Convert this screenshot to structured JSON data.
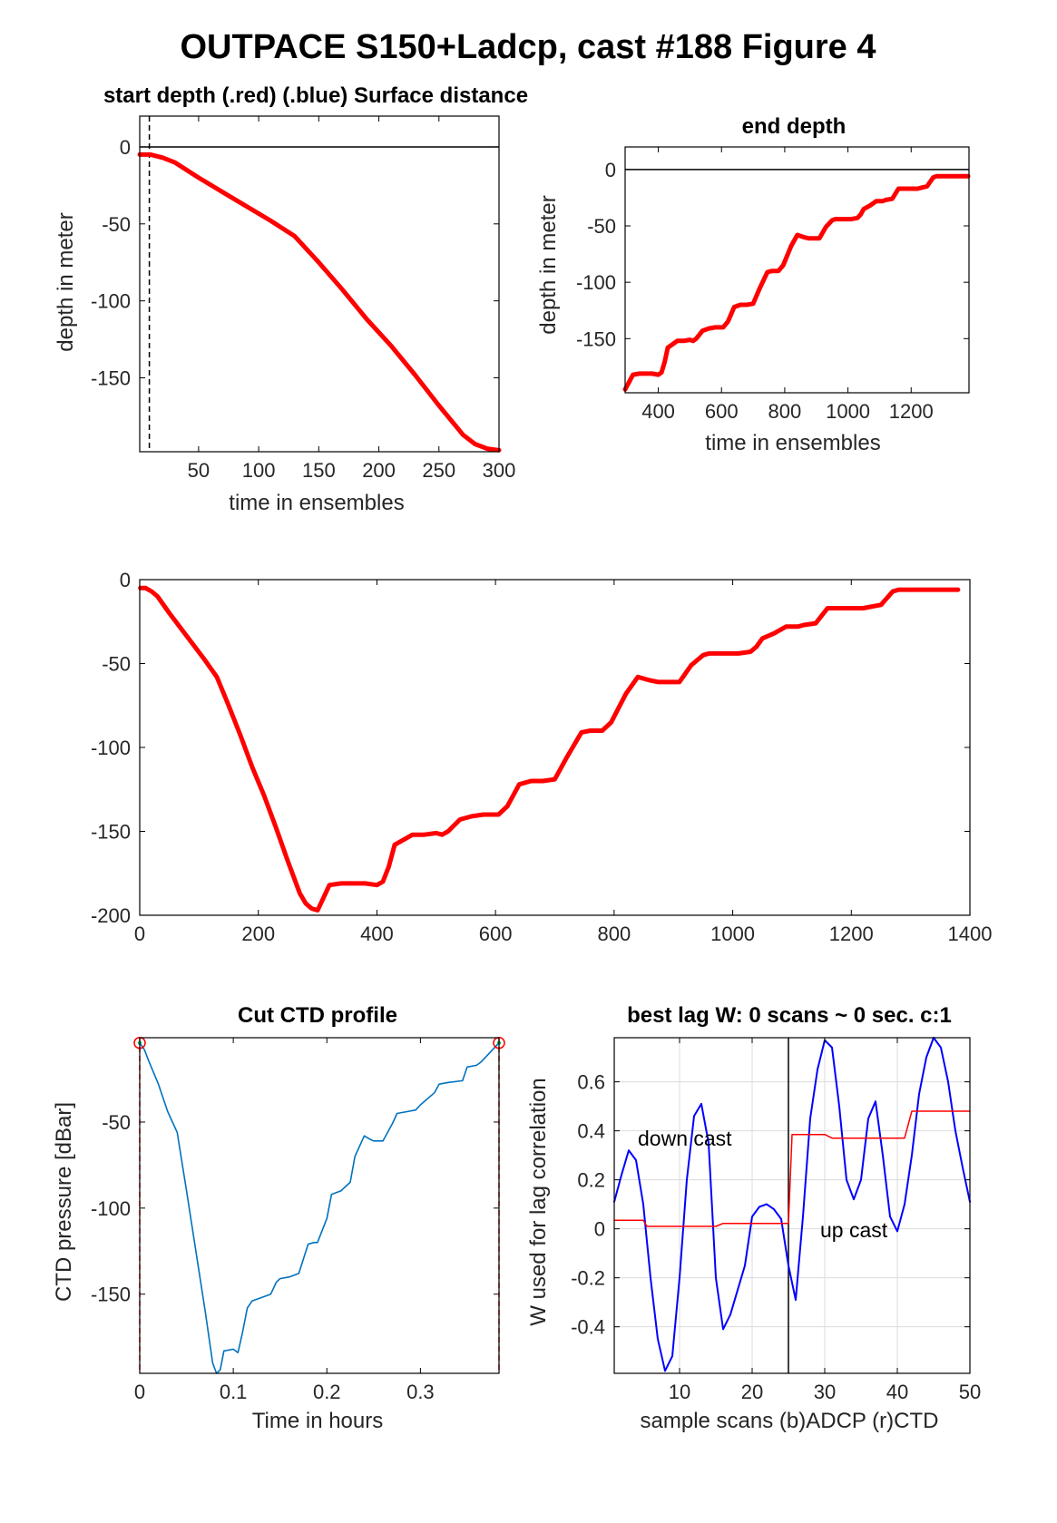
{
  "figure_title": "OUTPACE S150+Ladcp, cast #188   Figure 4",
  "colors": {
    "red": "#ff0000",
    "blue": "#0000ff",
    "ctd_blue": "#0072bd",
    "black": "#000000",
    "grid": "#dcdcdc"
  },
  "chart_data": [
    {
      "id": "start",
      "type": "line",
      "title": "start depth (.red) (.blue) Surface distance",
      "xlabel": "time in ensembles",
      "ylabel": "depth in meter",
      "xlim": [
        1,
        300
      ],
      "ylim": [
        -198,
        20
      ],
      "xticks": [
        50,
        100,
        150,
        200,
        250,
        300
      ],
      "yticks": [
        0,
        -50,
        -100,
        -150
      ],
      "grid": false,
      "hlines": [
        0
      ],
      "vlines_dashed": [
        9
      ],
      "series": [
        {
          "color": "red",
          "x": [
            1,
            10,
            20,
            30,
            50,
            80,
            110,
            130,
            150,
            170,
            190,
            210,
            230,
            250,
            270,
            280,
            290,
            300
          ],
          "y": [
            -5,
            -5,
            -7,
            -10,
            -20,
            -34,
            -48,
            -58,
            -75,
            -93,
            -112,
            -129,
            -148,
            -168,
            -187,
            -193,
            -196,
            -197
          ]
        }
      ]
    },
    {
      "id": "end",
      "type": "line",
      "title": "end depth",
      "xlabel": "time in ensembles",
      "ylabel": "depth in meter",
      "xlim": [
        295,
        1383
      ],
      "ylim": [
        -198,
        20
      ],
      "xticks": [
        400,
        600,
        800,
        1000,
        1200
      ],
      "yticks": [
        0,
        -50,
        -100,
        -150
      ],
      "grid": false,
      "hlines": [
        0
      ],
      "series": [
        {
          "color": "red",
          "x": [
            295,
            320,
            340,
            360,
            380,
            400,
            410,
            420,
            430,
            450,
            460,
            480,
            500,
            510,
            520,
            540,
            560,
            580,
            595,
            605,
            620,
            640,
            660,
            680,
            700,
            720,
            745,
            760,
            780,
            795,
            820,
            840,
            860,
            875,
            890,
            910,
            930,
            950,
            960,
            975,
            990,
            1010,
            1030,
            1040,
            1050,
            1070,
            1090,
            1110,
            1120,
            1140,
            1160,
            1190,
            1200,
            1220,
            1250,
            1270,
            1280,
            1300,
            1320,
            1340,
            1360,
            1380
          ],
          "y": [
            -195,
            -182,
            -181,
            -181,
            -181,
            -182,
            -180,
            -171,
            -158,
            -154,
            -152,
            -152,
            -151,
            -152,
            -150,
            -143,
            -141,
            -140,
            -140,
            -140,
            -135,
            -122,
            -120,
            -120,
            -119,
            -106,
            -91,
            -90,
            -90,
            -85,
            -68,
            -58,
            -60,
            -61,
            -61,
            -61,
            -51,
            -45,
            -44,
            -44,
            -44,
            -44,
            -43,
            -40,
            -35,
            -32,
            -28,
            -28,
            -27,
            -26,
            -17,
            -17,
            -17,
            -17,
            -15,
            -7,
            -6,
            -6,
            -6,
            -6,
            -6,
            -6
          ]
        }
      ]
    },
    {
      "id": "full",
      "type": "line",
      "title": "",
      "xlabel": "",
      "ylabel": "",
      "xlim": [
        0,
        1400
      ],
      "ylim": [
        -200,
        0
      ],
      "xticks": [
        0,
        200,
        400,
        600,
        800,
        1000,
        1200,
        1400
      ],
      "yticks": [
        0,
        -50,
        -100,
        -150,
        -200
      ],
      "grid": false,
      "series": [
        {
          "color": "red",
          "x": [
            1,
            10,
            20,
            30,
            50,
            80,
            110,
            130,
            150,
            170,
            190,
            210,
            230,
            250,
            270,
            280,
            290,
            300,
            320,
            340,
            360,
            380,
            400,
            410,
            420,
            430,
            450,
            460,
            480,
            500,
            510,
            520,
            540,
            560,
            580,
            595,
            605,
            620,
            640,
            660,
            680,
            700,
            720,
            745,
            760,
            780,
            795,
            820,
            840,
            860,
            875,
            890,
            910,
            930,
            950,
            960,
            975,
            990,
            1010,
            1030,
            1040,
            1050,
            1070,
            1090,
            1110,
            1120,
            1140,
            1160,
            1190,
            1200,
            1220,
            1250,
            1270,
            1280,
            1300,
            1320,
            1340,
            1360,
            1380
          ],
          "y": [
            -5,
            -5,
            -7,
            -10,
            -20,
            -34,
            -48,
            -58,
            -75,
            -93,
            -112,
            -129,
            -148,
            -168,
            -187,
            -193,
            -196,
            -197,
            -182,
            -181,
            -181,
            -181,
            -182,
            -180,
            -171,
            -158,
            -154,
            -152,
            -152,
            -151,
            -152,
            -150,
            -143,
            -141,
            -140,
            -140,
            -140,
            -135,
            -122,
            -120,
            -120,
            -119,
            -106,
            -91,
            -90,
            -90,
            -85,
            -68,
            -58,
            -60,
            -61,
            -61,
            -61,
            -51,
            -45,
            -44,
            -44,
            -44,
            -44,
            -43,
            -40,
            -35,
            -32,
            -28,
            -28,
            -27,
            -26,
            -17,
            -17,
            -17,
            -17,
            -15,
            -7,
            -6,
            -6,
            -6,
            -6,
            -6,
            -6
          ]
        }
      ]
    },
    {
      "id": "ctd",
      "type": "line",
      "title": "Cut CTD profile",
      "xlabel": "Time in hours",
      "ylabel": "CTD pressure [dBar]",
      "xlim": [
        0,
        0.384
      ],
      "ylim": [
        -196,
        -1
      ],
      "xticks": [
        0,
        0.1,
        0.2,
        0.3
      ],
      "xticklabels": [
        "0",
        "0.1",
        "0.2",
        "0.3"
      ],
      "yticks": [
        -50,
        -100,
        -150
      ],
      "grid": false,
      "vlines_dashed": [
        0,
        0.384
      ],
      "endpoints": [
        [
          0,
          -4
        ],
        [
          0.384,
          -4
        ]
      ],
      "series": [
        {
          "color": "ctd_blue",
          "x": [
            0,
            0.005,
            0.01,
            0.02,
            0.03,
            0.035,
            0.04,
            0.05,
            0.06,
            0.07,
            0.078,
            0.082,
            0.086,
            0.09,
            0.1,
            0.105,
            0.11,
            0.115,
            0.12,
            0.13,
            0.14,
            0.146,
            0.15,
            0.16,
            0.17,
            0.18,
            0.186,
            0.19,
            0.2,
            0.205,
            0.21,
            0.215,
            0.225,
            0.23,
            0.24,
            0.246,
            0.25,
            0.26,
            0.27,
            0.275,
            0.285,
            0.295,
            0.3,
            0.315,
            0.32,
            0.33,
            0.345,
            0.35,
            0.36,
            0.365,
            0.384
          ],
          "y": [
            -4,
            -8,
            -15,
            -28,
            -44,
            -50,
            -56,
            -90,
            -125,
            -160,
            -190,
            -196,
            -194,
            -183,
            -182,
            -184,
            -172,
            -158,
            -154,
            -152,
            -150,
            -143,
            -141,
            -140,
            -138,
            -121,
            -120,
            -120,
            -106,
            -92,
            -91,
            -90,
            -85,
            -70,
            -58,
            -60,
            -61,
            -61,
            -51,
            -45,
            -44,
            -43,
            -40,
            -33,
            -28,
            -27,
            -26,
            -18,
            -17,
            -15,
            -4
          ]
        }
      ]
    },
    {
      "id": "lag",
      "type": "line",
      "title": "best lag W: 0 scans ~ 0 sec.  c:1",
      "xlabel": "sample scans (b)ADCP (r)CTD",
      "ylabel": "W used for lag correlation",
      "xlim": [
        1,
        50
      ],
      "ylim": [
        -0.59,
        0.78
      ],
      "xticks": [
        10,
        20,
        30,
        40,
        50
      ],
      "yticks": [
        0.6,
        0.4,
        0.2,
        0,
        -0.2,
        -0.4
      ],
      "yticklabels": [
        "0.6",
        "0.4",
        "0.2",
        "0",
        "-0.2",
        "-0.4"
      ],
      "grid": true,
      "vlines": [
        25
      ],
      "annotations": [
        "down cast",
        "up cast"
      ],
      "series": [
        {
          "color": "blue",
          "x": [
            1,
            2,
            3,
            4,
            5,
            6,
            7,
            8,
            9,
            10,
            11,
            12,
            13,
            14,
            15,
            16,
            17,
            18,
            19,
            20,
            21,
            22,
            23,
            24,
            25,
            26,
            27,
            28,
            29,
            30,
            31,
            32,
            33,
            34,
            35,
            36,
            37,
            38,
            39,
            40,
            41,
            42,
            43,
            44,
            45,
            46,
            47,
            48,
            49,
            50
          ],
          "y": [
            0.11,
            0.22,
            0.32,
            0.28,
            0.1,
            -0.2,
            -0.45,
            -0.58,
            -0.52,
            -0.2,
            0.2,
            0.46,
            0.51,
            0.35,
            -0.2,
            -0.41,
            -0.35,
            -0.25,
            -0.15,
            0.05,
            0.09,
            0.1,
            0.08,
            0.04,
            -0.15,
            -0.29,
            0.05,
            0.45,
            0.65,
            0.77,
            0.74,
            0.5,
            0.2,
            0.12,
            0.2,
            0.45,
            0.52,
            0.3,
            0.05,
            -0.01,
            0.1,
            0.3,
            0.55,
            0.7,
            0.78,
            0.74,
            0.6,
            0.4,
            0.25,
            0.11
          ]
        },
        {
          "color": "red",
          "x": [
            1,
            5,
            5.5,
            15,
            16,
            25,
            25.5,
            30,
            31,
            41,
            42,
            50
          ],
          "y": [
            0.035,
            0.035,
            0.01,
            0.01,
            0.022,
            0.022,
            0.385,
            0.385,
            0.37,
            0.37,
            0.48,
            0.48
          ]
        }
      ]
    }
  ]
}
